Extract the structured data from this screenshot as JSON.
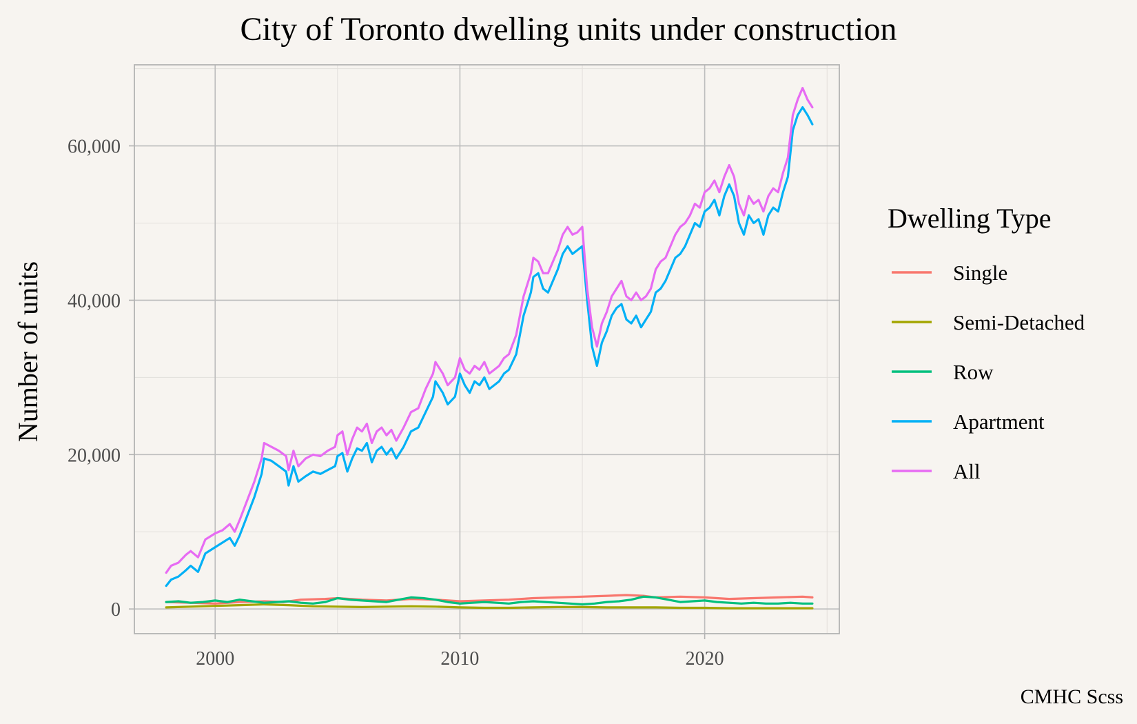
{
  "chart_data": {
    "type": "line",
    "title": "City of Toronto dwelling units under construction",
    "xlabel": "",
    "ylabel": "Number of units",
    "caption": "CMHC Scss",
    "xlim": [
      1996.7,
      2025.5
    ],
    "ylim": [
      -3200,
      70500
    ],
    "x_ticks": [
      2000,
      2010,
      2020
    ],
    "x_tick_labels": [
      "2000",
      "2010",
      "2020"
    ],
    "y_ticks": [
      0,
      20000,
      40000,
      60000
    ],
    "y_tick_labels": [
      "0",
      "20,000",
      "40,000",
      "60,000"
    ],
    "grid": true,
    "legend": {
      "title": "Dwelling Type",
      "position": "right"
    },
    "series": [
      {
        "name": "Single",
        "color": "#f8766d",
        "x": [
          1998.0,
          1999.0,
          2000.0,
          2001.0,
          2002.0,
          2002.8,
          2003.5,
          2004.5,
          2005.0,
          2006.0,
          2007.0,
          2008.0,
          2009.0,
          2010.0,
          2011.0,
          2012.0,
          2013.0,
          2014.0,
          2015.0,
          2016.0,
          2016.8,
          2017.5,
          2018.0,
          2019.0,
          2020.0,
          2021.0,
          2022.0,
          2023.0,
          2024.0,
          2024.4
        ],
        "y": [
          900,
          800,
          700,
          900,
          1000,
          900,
          1200,
          1300,
          1400,
          1200,
          1100,
          1300,
          1200,
          1000,
          1100,
          1200,
          1400,
          1500,
          1600,
          1700,
          1800,
          1700,
          1500,
          1600,
          1500,
          1300,
          1400,
          1500,
          1600,
          1500
        ]
      },
      {
        "name": "Semi-Detached",
        "color": "#a3a500",
        "x": [
          1998.0,
          1999.0,
          2000.0,
          2001.0,
          2002.0,
          2003.0,
          2004.0,
          2005.0,
          2006.0,
          2007.0,
          2008.0,
          2009.0,
          2010.0,
          2011.0,
          2012.0,
          2013.0,
          2014.0,
          2015.0,
          2016.0,
          2017.0,
          2018.0,
          2019.0,
          2020.0,
          2021.0,
          2022.0,
          2023.0,
          2024.0,
          2024.4
        ],
        "y": [
          200,
          300,
          400,
          500,
          600,
          500,
          350,
          300,
          250,
          300,
          350,
          300,
          200,
          150,
          150,
          200,
          250,
          250,
          200,
          200,
          200,
          150,
          150,
          100,
          100,
          100,
          100,
          100
        ]
      },
      {
        "name": "Row",
        "color": "#00bf7d",
        "x": [
          1998.0,
          1998.5,
          1999.0,
          1999.5,
          2000.0,
          2000.5,
          2001.0,
          2001.5,
          2002.0,
          2002.5,
          2003.0,
          2003.5,
          2004.0,
          2004.5,
          2005.0,
          2005.5,
          2006.0,
          2006.5,
          2007.0,
          2007.5,
          2008.0,
          2008.5,
          2009.0,
          2009.5,
          2010.0,
          2010.5,
          2011.0,
          2011.5,
          2012.0,
          2012.5,
          2013.0,
          2013.5,
          2014.0,
          2014.5,
          2015.0,
          2015.5,
          2016.0,
          2016.5,
          2017.0,
          2017.5,
          2018.0,
          2018.5,
          2019.0,
          2019.5,
          2020.0,
          2020.5,
          2021.0,
          2021.5,
          2022.0,
          2022.5,
          2023.0,
          2023.5,
          2024.0,
          2024.4
        ],
        "y": [
          900,
          1000,
          800,
          900,
          1100,
          900,
          1200,
          1000,
          800,
          900,
          1000,
          800,
          700,
          900,
          1400,
          1200,
          1100,
          1000,
          900,
          1200,
          1500,
          1400,
          1200,
          900,
          700,
          800,
          900,
          800,
          700,
          900,
          1000,
          900,
          800,
          700,
          600,
          700,
          900,
          1000,
          1200,
          1600,
          1500,
          1200,
          900,
          1000,
          1100,
          900,
          800,
          700,
          800,
          700,
          700,
          800,
          700,
          700
        ]
      },
      {
        "name": "Apartment",
        "color": "#00b0f6",
        "x": [
          1998.0,
          1998.2,
          1998.5,
          1998.8,
          1999.0,
          1999.3,
          1999.6,
          1999.8,
          2000.0,
          2000.3,
          2000.6,
          2000.8,
          2001.0,
          2001.3,
          2001.6,
          2001.9,
          2002.0,
          2002.3,
          2002.6,
          2002.9,
          2003.0,
          2003.2,
          2003.4,
          2003.7,
          2004.0,
          2004.3,
          2004.6,
          2004.9,
          2005.0,
          2005.2,
          2005.4,
          2005.6,
          2005.8,
          2006.0,
          2006.2,
          2006.4,
          2006.6,
          2006.8,
          2007.0,
          2007.2,
          2007.4,
          2007.7,
          2008.0,
          2008.3,
          2008.6,
          2008.9,
          2009.0,
          2009.3,
          2009.5,
          2009.8,
          2010.0,
          2010.2,
          2010.4,
          2010.6,
          2010.8,
          2011.0,
          2011.2,
          2011.4,
          2011.6,
          2011.8,
          2012.0,
          2012.3,
          2012.6,
          2012.9,
          2013.0,
          2013.2,
          2013.4,
          2013.6,
          2013.8,
          2014.0,
          2014.2,
          2014.4,
          2014.6,
          2014.8,
          2015.0,
          2015.2,
          2015.4,
          2015.6,
          2015.8,
          2016.0,
          2016.2,
          2016.4,
          2016.6,
          2016.8,
          2017.0,
          2017.2,
          2017.4,
          2017.6,
          2017.8,
          2018.0,
          2018.2,
          2018.4,
          2018.6,
          2018.8,
          2019.0,
          2019.2,
          2019.4,
          2019.6,
          2019.8,
          2020.0,
          2020.2,
          2020.4,
          2020.6,
          2020.8,
          2021.0,
          2021.2,
          2021.4,
          2021.6,
          2021.8,
          2022.0,
          2022.2,
          2022.4,
          2022.6,
          2022.8,
          2023.0,
          2023.2,
          2023.4,
          2023.6,
          2023.8,
          2024.0,
          2024.2,
          2024.4
        ],
        "y": [
          3000,
          3800,
          4200,
          5000,
          5600,
          4800,
          7200,
          7600,
          8000,
          8600,
          9200,
          8200,
          9500,
          12000,
          14500,
          17500,
          19500,
          19200,
          18500,
          17800,
          16000,
          18500,
          16500,
          17200,
          17800,
          17500,
          18000,
          18500,
          19800,
          20200,
          17800,
          19500,
          20800,
          20500,
          21500,
          19000,
          20500,
          21000,
          20000,
          20800,
          19500,
          21000,
          23000,
          23500,
          25500,
          27500,
          29500,
          28000,
          26500,
          27500,
          30500,
          29000,
          28000,
          29500,
          29000,
          30000,
          28500,
          29000,
          29500,
          30500,
          31000,
          33000,
          38000,
          41000,
          43000,
          43500,
          41500,
          41000,
          42500,
          44000,
          46000,
          47000,
          46000,
          46500,
          47000,
          40000,
          34000,
          31500,
          34500,
          36000,
          38000,
          39000,
          39500,
          37500,
          37000,
          38000,
          36500,
          37500,
          38500,
          41000,
          41500,
          42500,
          44000,
          45500,
          46000,
          47000,
          48500,
          50000,
          49500,
          51500,
          52000,
          53000,
          51000,
          53500,
          55000,
          53500,
          50000,
          48500,
          51000,
          50000,
          50500,
          48500,
          51000,
          52000,
          51500,
          54000,
          56000,
          62000,
          64000,
          65000,
          64000,
          62800
        ]
      },
      {
        "name": "All",
        "color": "#e76bf3",
        "x": [
          1998.0,
          1998.2,
          1998.5,
          1998.8,
          1999.0,
          1999.3,
          1999.6,
          1999.8,
          2000.0,
          2000.3,
          2000.6,
          2000.8,
          2001.0,
          2001.3,
          2001.6,
          2001.9,
          2002.0,
          2002.3,
          2002.6,
          2002.9,
          2003.0,
          2003.2,
          2003.4,
          2003.7,
          2004.0,
          2004.3,
          2004.6,
          2004.9,
          2005.0,
          2005.2,
          2005.4,
          2005.6,
          2005.8,
          2006.0,
          2006.2,
          2006.4,
          2006.6,
          2006.8,
          2007.0,
          2007.2,
          2007.4,
          2007.7,
          2008.0,
          2008.3,
          2008.6,
          2008.9,
          2009.0,
          2009.3,
          2009.5,
          2009.8,
          2010.0,
          2010.2,
          2010.4,
          2010.6,
          2010.8,
          2011.0,
          2011.2,
          2011.4,
          2011.6,
          2011.8,
          2012.0,
          2012.3,
          2012.6,
          2012.9,
          2013.0,
          2013.2,
          2013.4,
          2013.6,
          2013.8,
          2014.0,
          2014.2,
          2014.4,
          2014.6,
          2014.8,
          2015.0,
          2015.2,
          2015.4,
          2015.6,
          2015.8,
          2016.0,
          2016.2,
          2016.4,
          2016.6,
          2016.8,
          2017.0,
          2017.2,
          2017.4,
          2017.6,
          2017.8,
          2018.0,
          2018.2,
          2018.4,
          2018.6,
          2018.8,
          2019.0,
          2019.2,
          2019.4,
          2019.6,
          2019.8,
          2020.0,
          2020.2,
          2020.4,
          2020.6,
          2020.8,
          2021.0,
          2021.2,
          2021.4,
          2021.6,
          2021.8,
          2022.0,
          2022.2,
          2022.4,
          2022.6,
          2022.8,
          2023.0,
          2023.2,
          2023.4,
          2023.6,
          2023.8,
          2024.0,
          2024.2,
          2024.4
        ],
        "y": [
          4700,
          5600,
          6000,
          7000,
          7500,
          6700,
          9000,
          9400,
          9800,
          10200,
          11000,
          10000,
          11500,
          14000,
          16500,
          19500,
          21500,
          21000,
          20500,
          19800,
          18000,
          20500,
          18500,
          19500,
          20000,
          19800,
          20500,
          21000,
          22500,
          23000,
          20000,
          22000,
          23500,
          23000,
          24000,
          21500,
          23000,
          23500,
          22500,
          23200,
          21800,
          23500,
          25500,
          26000,
          28500,
          30500,
          32000,
          30500,
          29000,
          30000,
          32500,
          31000,
          30500,
          31500,
          31000,
          32000,
          30500,
          31000,
          31500,
          32500,
          33000,
          35500,
          40500,
          43500,
          45500,
          45000,
          43500,
          43500,
          45000,
          46500,
          48500,
          49500,
          48500,
          48800,
          49500,
          41500,
          36500,
          34000,
          37000,
          38500,
          40500,
          41500,
          42500,
          40500,
          40000,
          41000,
          40000,
          40500,
          41500,
          44000,
          45000,
          45500,
          47000,
          48500,
          49500,
          50000,
          51000,
          52500,
          52000,
          54000,
          54500,
          55500,
          54000,
          56000,
          57500,
          56000,
          52500,
          51000,
          53500,
          52500,
          53000,
          51500,
          53500,
          54500,
          54000,
          56500,
          58500,
          64000,
          66000,
          67500,
          66000,
          65000
        ]
      }
    ]
  }
}
